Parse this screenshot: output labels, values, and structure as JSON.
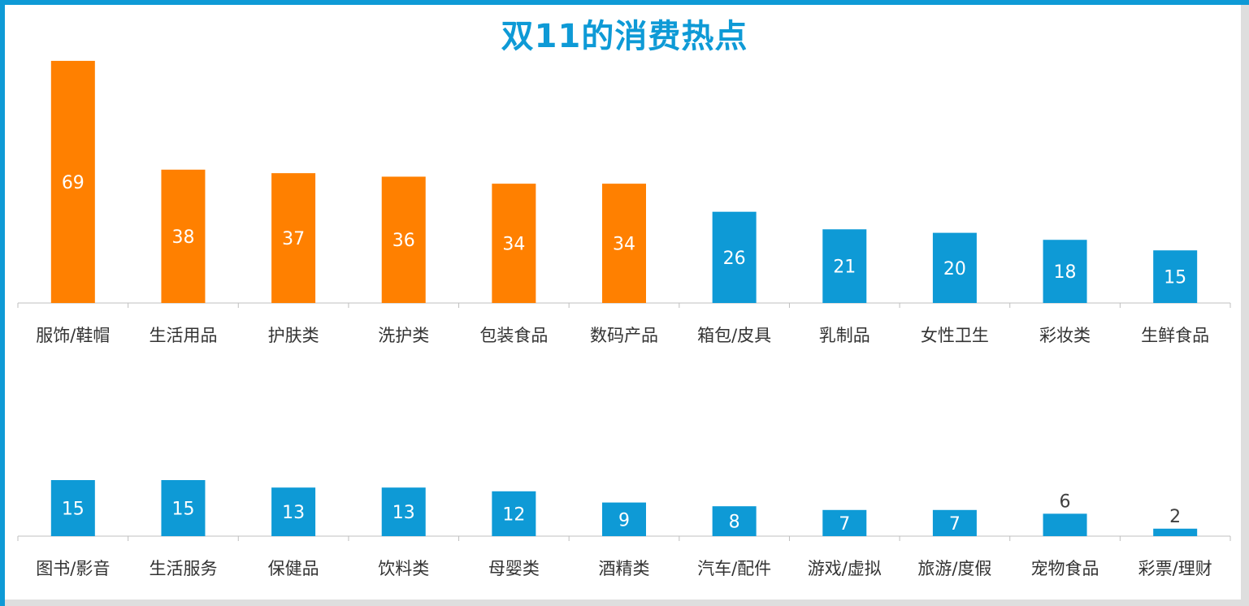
{
  "chart_data": [
    {
      "type": "bar",
      "title": "双11的消费热点",
      "categories": [
        "服饰/鞋帽",
        "生活用品",
        "护肤类",
        "洗护类",
        "包装食品",
        "数码产品",
        "箱包/皮具",
        "乳制品",
        "女性卫生",
        "彩妆类",
        "生鲜食品"
      ],
      "values": [
        69,
        38,
        37,
        36,
        34,
        34,
        26,
        21,
        20,
        18,
        15
      ],
      "highlight_count": 6,
      "colors": {
        "highlight": "#ff8000",
        "normal": "#0e9ad6"
      },
      "grid": false,
      "show_value_axis": false
    },
    {
      "type": "bar",
      "categories": [
        "图书/影音",
        "生活服务",
        "保健品",
        "饮料类",
        "母婴类",
        "酒精类",
        "汽车/配件",
        "游戏/虚拟",
        "旅游/度假",
        "宠物食品",
        "彩票/理财"
      ],
      "values": [
        15,
        15,
        13,
        13,
        12,
        9,
        8,
        7,
        7,
        6,
        2
      ],
      "highlight_count": 0,
      "colors": {
        "highlight": "#ff8000",
        "normal": "#0e9ad6"
      },
      "grid": false,
      "show_value_axis": false
    }
  ]
}
